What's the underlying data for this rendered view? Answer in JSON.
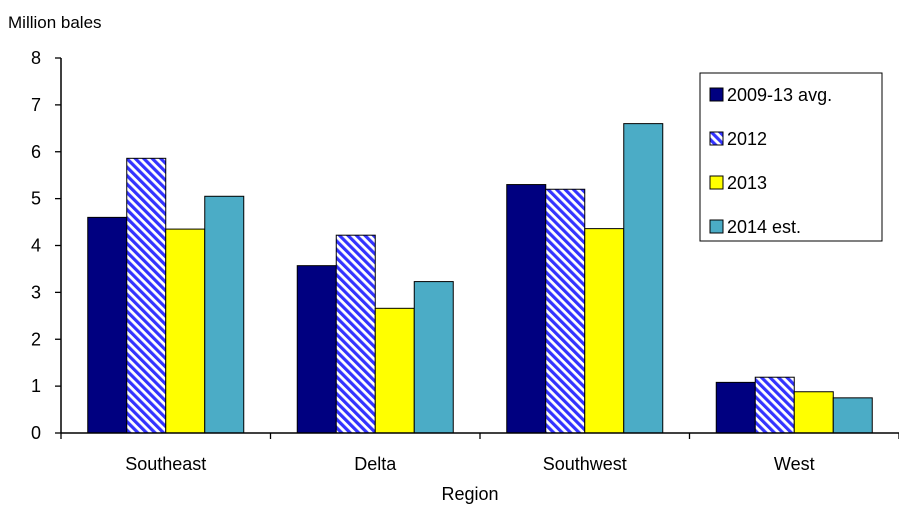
{
  "chart_data": {
    "type": "bar",
    "title": "",
    "ylabel": "Million bales",
    "xlabel": "Region",
    "ylim": [
      0,
      8
    ],
    "yticks": [
      0,
      1,
      2,
      3,
      4,
      5,
      6,
      7,
      8
    ],
    "categories": [
      "Southeast",
      "Delta",
      "Southwest",
      "West"
    ],
    "series": [
      {
        "name": "2009-13 avg.",
        "color": "#000080",
        "pattern": "solid",
        "values": [
          4.6,
          3.57,
          5.3,
          1.08
        ]
      },
      {
        "name": "2012",
        "color": "#3333ff",
        "pattern": "diagonal-hatch",
        "values": [
          5.86,
          4.22,
          5.2,
          1.19
        ]
      },
      {
        "name": "2013",
        "color": "#ffff00",
        "pattern": "solid",
        "values": [
          4.35,
          2.66,
          4.36,
          0.88
        ]
      },
      {
        "name": "2014 est.",
        "color": "#4bacc6",
        "pattern": "solid",
        "values": [
          5.05,
          3.23,
          6.6,
          0.75
        ]
      }
    ],
    "legend_position": "top-right",
    "grid": false
  }
}
